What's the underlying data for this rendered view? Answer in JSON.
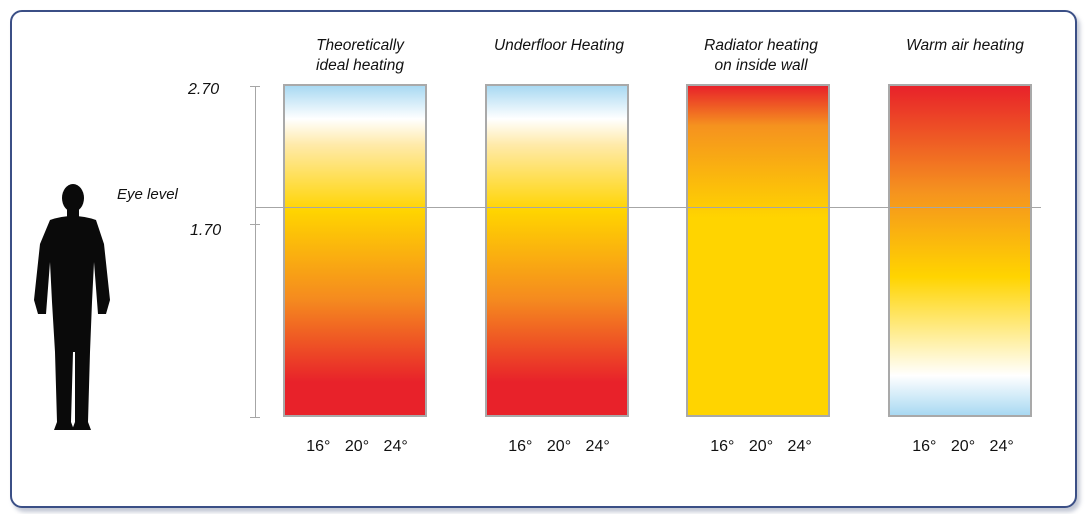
{
  "heights": {
    "top": "2.70",
    "mid": "1.70"
  },
  "eye_level_label": "Eye level",
  "temperature_ticks": [
    "16°",
    "20°",
    "24°"
  ],
  "columns": [
    {
      "title": "Theoretically\nideal heating",
      "gradient": [
        "#a9d9f2",
        "#ffffff",
        "#ffeaa8",
        "#ffd400",
        "#f58a1f",
        "#e8222a"
      ]
    },
    {
      "title": "Underfloor Heating",
      "gradient": [
        "#a9d9f2",
        "#ffffff",
        "#ffeaa8",
        "#ffd400",
        "#f58a1f",
        "#e8222a"
      ]
    },
    {
      "title": "Radiator heating\non inside wall",
      "gradient": [
        "#e8222a",
        "#f5921f",
        "#ffd400",
        "#ffd400"
      ]
    },
    {
      "title": "Warm air heating",
      "gradient": [
        "#e8222a",
        "#f5921f",
        "#ffd400",
        "#ffffff",
        "#a9d9f2"
      ]
    }
  ]
}
